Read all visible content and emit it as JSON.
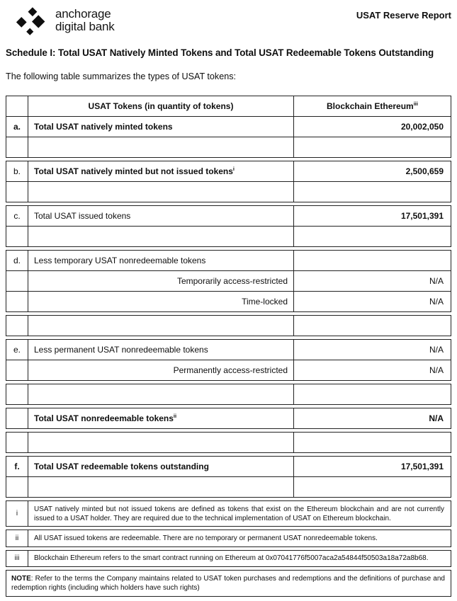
{
  "page": {
    "background": "#ffffff",
    "text_color": "#0f0f0f",
    "border_color": "#222222"
  },
  "header": {
    "logo_icon": "anchorage-diamonds-logo",
    "logo_line1": "anchorage",
    "logo_line2": "digital bank",
    "report_title": "USAT Reserve Report"
  },
  "schedule_title": "Schedule I: Total USAT Natively Minted Tokens and Total USAT Redeemable Tokens Outstanding",
  "intro": "The following table summarizes the types of USAT tokens:",
  "table": {
    "groups": [
      {
        "name": "group-header-a",
        "rows": [
          {
            "name": "header-row",
            "type": "header",
            "letter": "",
            "label": "USAT Tokens (in quantity of tokens)",
            "label_bold": true,
            "value": "Blockchain Ethereum",
            "value_sup": "iii",
            "value_bold": true
          },
          {
            "name": "row-a",
            "letter": "a.",
            "letter_bold": true,
            "label": "Total USAT natively minted tokens",
            "label_bold": true,
            "value": "20,002,050",
            "value_bold": true
          },
          {
            "name": "spacer-row",
            "type": "spacer"
          }
        ]
      },
      {
        "name": "group-b",
        "rows": [
          {
            "name": "row-b",
            "letter": "b.",
            "label": "Total USAT natively minted but not issued tokens",
            "label_sup": "i",
            "label_bold": true,
            "value": "2,500,659",
            "value_bold": true
          },
          {
            "name": "spacer-row",
            "type": "spacer"
          }
        ]
      },
      {
        "name": "group-c",
        "rows": [
          {
            "name": "row-c",
            "letter": "c.",
            "label": "Total USAT issued tokens",
            "value": "17,501,391",
            "value_bold": true
          },
          {
            "name": "spacer-row",
            "type": "spacer"
          }
        ]
      },
      {
        "name": "group-d",
        "rows": [
          {
            "name": "row-d",
            "letter": "d.",
            "label": "Less temporary USAT nonredeemable tokens",
            "value": ""
          },
          {
            "name": "row-d-sub-temporarily",
            "letter": "",
            "label": "Temporarily access-restricted",
            "label_align": "right",
            "value": "N/A"
          },
          {
            "name": "row-d-sub-timelocked",
            "letter": "",
            "label": "Time-locked",
            "label_align": "right",
            "value": "N/A"
          }
        ]
      },
      {
        "name": "spacer-group",
        "rows": [
          {
            "name": "spacer-row",
            "type": "spacer"
          }
        ]
      },
      {
        "name": "group-e",
        "rows": [
          {
            "name": "row-e",
            "letter": "e.",
            "label": "Less permanent USAT nonredeemable tokens",
            "value": "N/A"
          },
          {
            "name": "row-e-sub-permanently",
            "letter": "",
            "label": "Permanently access-restricted",
            "label_align": "right",
            "value": "N/A"
          }
        ]
      },
      {
        "name": "spacer-group",
        "rows": [
          {
            "name": "spacer-row",
            "type": "spacer"
          }
        ]
      },
      {
        "name": "group-total-nonredeemable",
        "rows": [
          {
            "name": "row-total-nonredeemable",
            "letter": "",
            "label": "Total USAT nonredeemable tokens",
            "label_sup": "ii",
            "label_bold": true,
            "value": "N/A",
            "value_bold": true
          }
        ]
      },
      {
        "name": "spacer-group",
        "rows": [
          {
            "name": "spacer-row",
            "type": "spacer"
          }
        ]
      },
      {
        "name": "group-f",
        "rows": [
          {
            "name": "row-f",
            "letter": "f.",
            "letter_bold": true,
            "label": "Total USAT redeemable tokens outstanding",
            "label_bold": true,
            "value": "17,501,391",
            "value_bold": true
          },
          {
            "name": "spacer-row",
            "type": "spacer"
          }
        ]
      }
    ]
  },
  "footnotes": [
    {
      "marker": "i",
      "text": "USAT natively minted but not issued tokens are defined as tokens that exist on the Ethereum blockchain and are not currently issued to a USAT holder. They are required due to the technical implementation of USAT on Ethereum blockchain."
    },
    {
      "marker": "ii",
      "text": "All USAT issued tokens are redeemable. There are no temporary or permanent USAT nonredeemable tokens."
    },
    {
      "marker": "iii",
      "text": "Blockchain Ethereum refers to the smart contract running on Ethereum at 0x07041776f5007aca2a54844f50503a18a72a8b68."
    }
  ],
  "note": {
    "label": "NOTE",
    "text": ": Refer to the terms the Company maintains related to USAT token purchases and redemptions and the definitions of purchase and redemption rights (including which holders have such rights)"
  }
}
